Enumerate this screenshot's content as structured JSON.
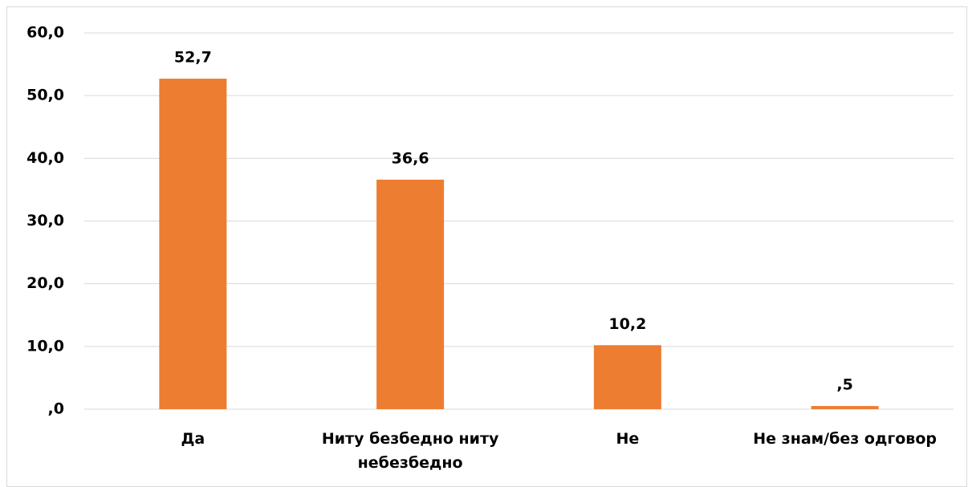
{
  "chart_data": {
    "type": "bar",
    "categories": [
      "Да",
      "Ниту безбедно ниту небезбедно",
      "Не",
      "Не знам/без одговор"
    ],
    "values": [
      52.7,
      36.6,
      10.2,
      0.5
    ],
    "value_labels": [
      "52,7",
      "36,6",
      "10,2",
      ",5"
    ],
    "color": "#ed7d31",
    "ylim": [
      0,
      60
    ],
    "yticks": [
      {
        "value": 0,
        "label": ",0"
      },
      {
        "value": 10,
        "label": "10,0"
      },
      {
        "value": 20,
        "label": "20,0"
      },
      {
        "value": 30,
        "label": "30,0"
      },
      {
        "value": 40,
        "label": "40,0"
      },
      {
        "value": 50,
        "label": "50,0"
      },
      {
        "value": 60,
        "label": "60,0"
      }
    ],
    "grid": true
  }
}
